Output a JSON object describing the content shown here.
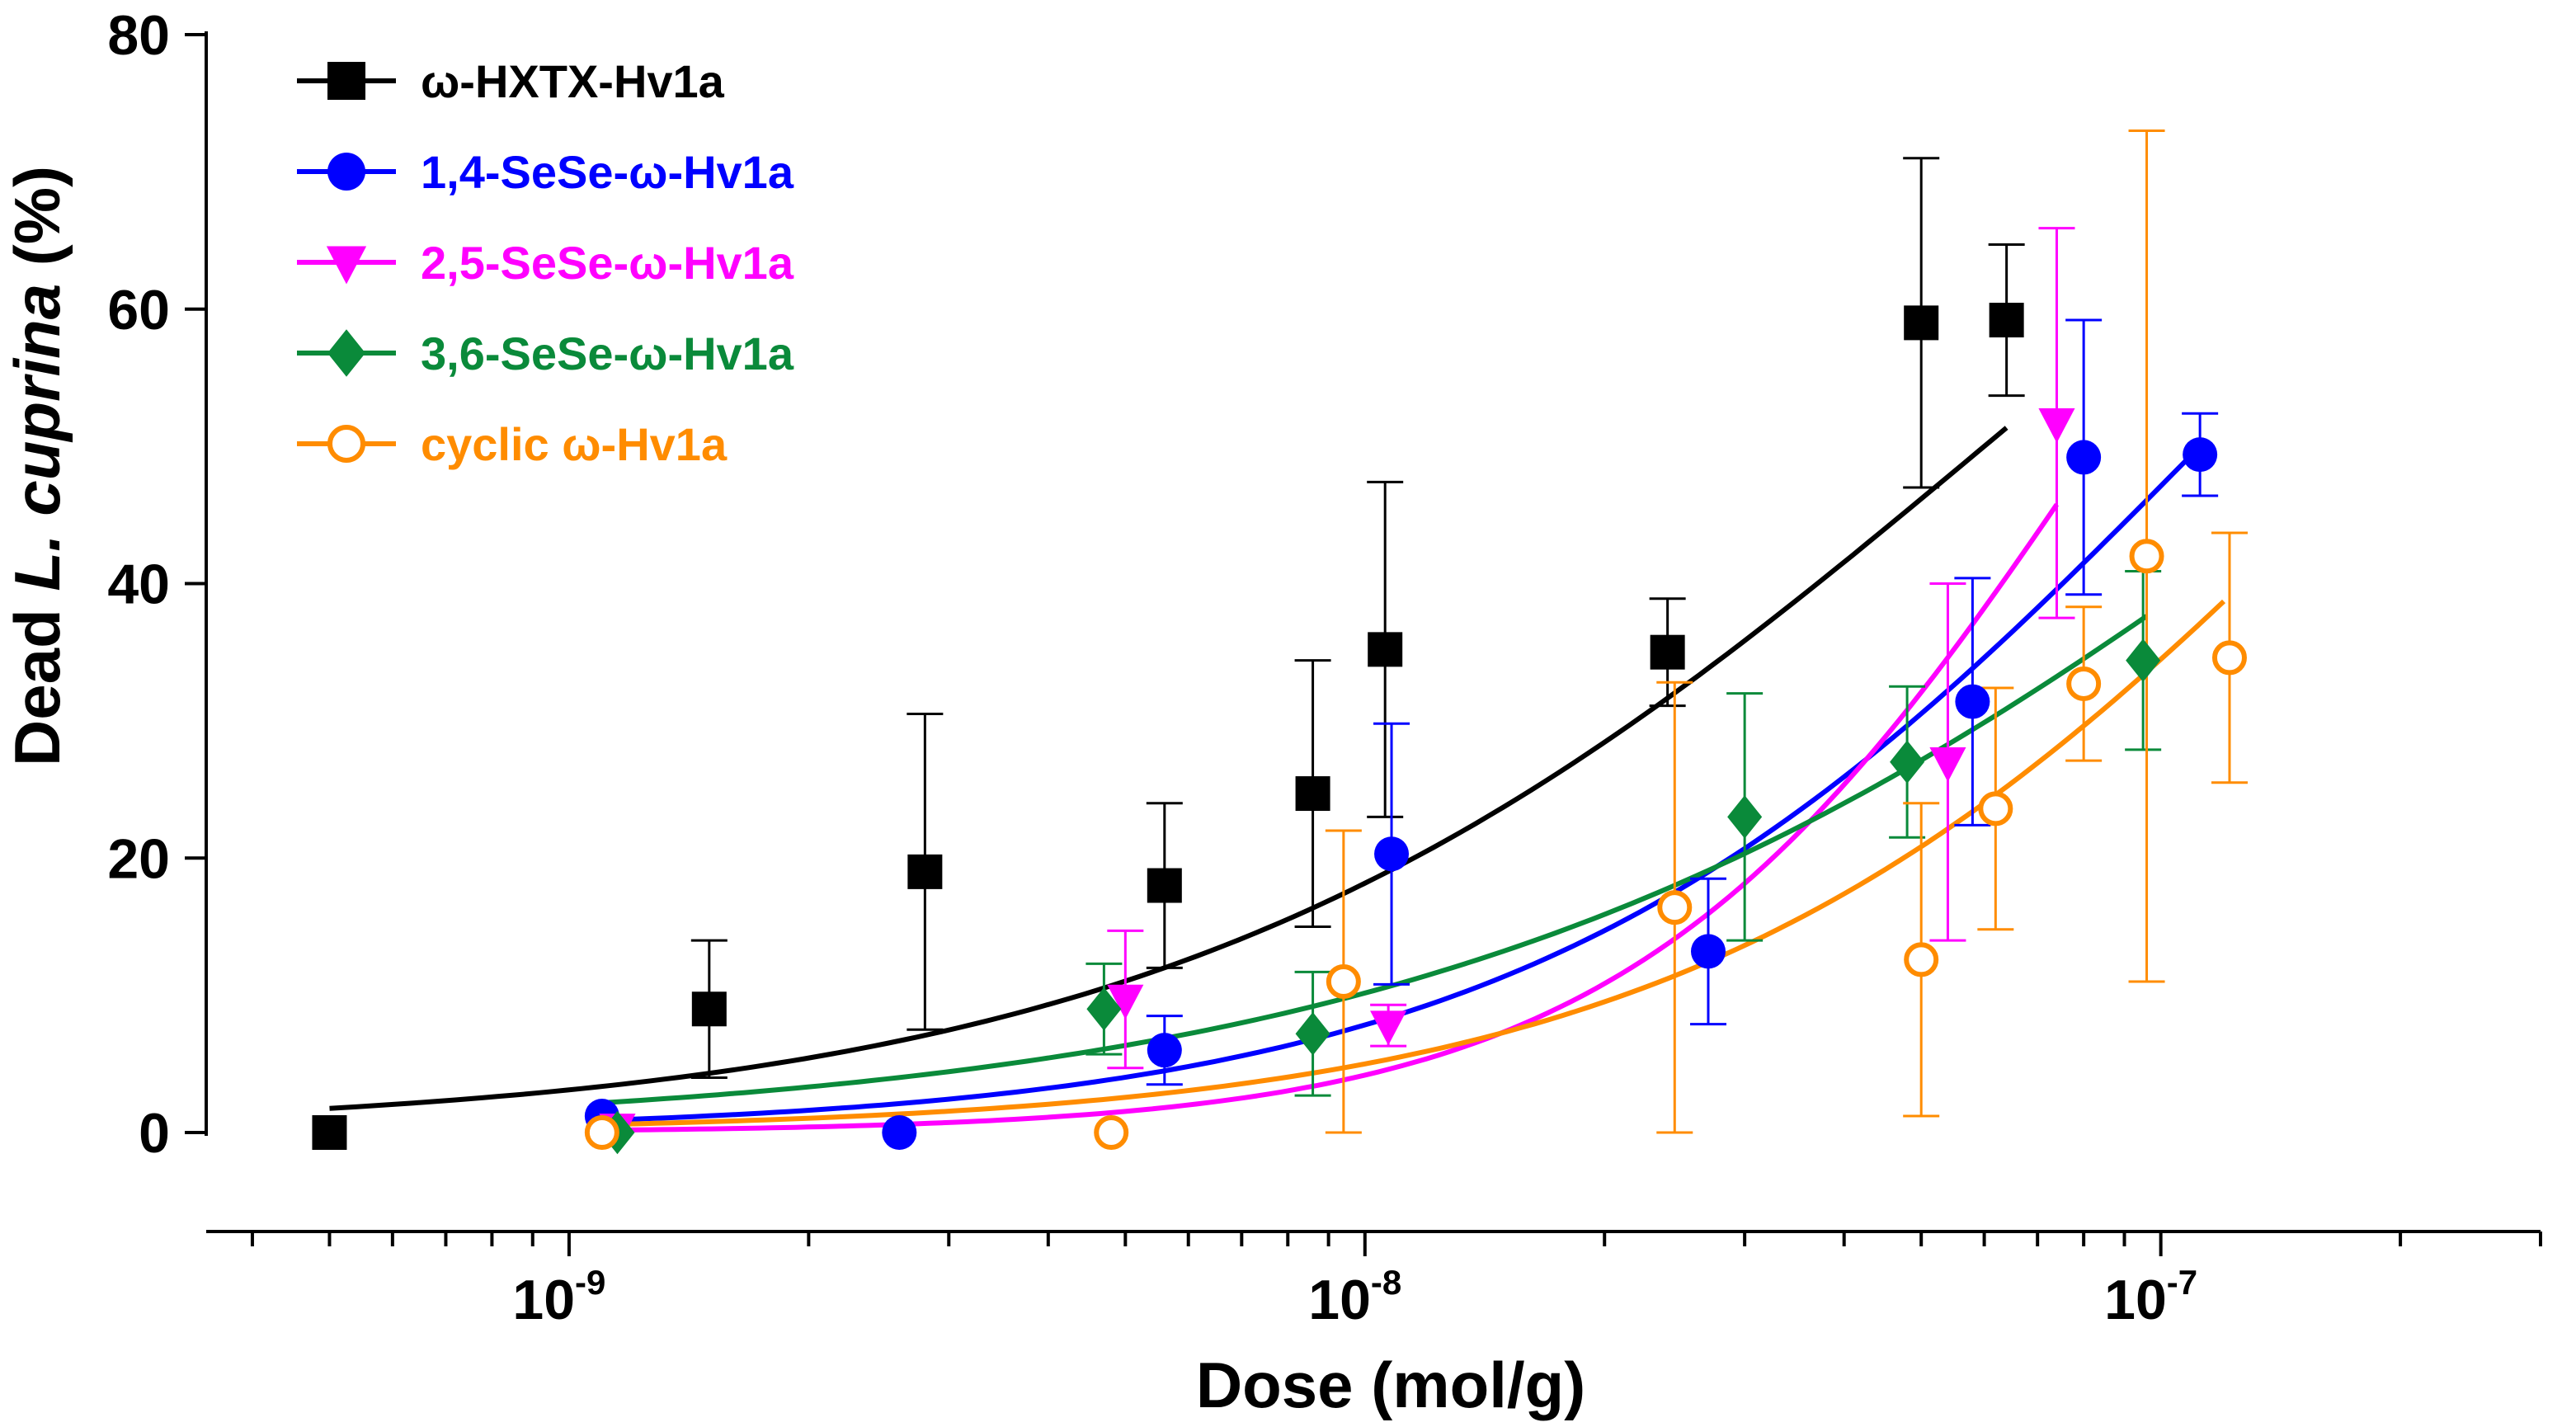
{
  "chart_data": {
    "type": "scatter",
    "title": "",
    "xlabel": "Dose (mol/g)",
    "ylabel": {
      "prefix": "Dead ",
      "italic": "L. cuprina",
      "suffix": " (%)"
    },
    "xscale": "log",
    "xlim": [
      3.5e-10,
      3e-07
    ],
    "ylim": [
      0,
      80
    ],
    "y_ticks": [
      0,
      20,
      40,
      60,
      80
    ],
    "x_ticks": [
      {
        "value": 1e-09,
        "base": "10",
        "exp": "-9"
      },
      {
        "value": 1e-08,
        "base": "10",
        "exp": "-8"
      },
      {
        "value": 1e-07,
        "base": "10",
        "exp": "-7"
      }
    ],
    "grid": false,
    "legend_position": "top-left",
    "series": [
      {
        "name": "ω-HXTX-Hv1a",
        "color": "#000000",
        "marker": "square",
        "curve": {
          "x0": 5e-10,
          "x1": 6.4e-08,
          "ec50": 6e-08,
          "hill": 0.84,
          "top": 100
        },
        "points": [
          {
            "x": 5e-10,
            "y": 0,
            "err": 0
          },
          {
            "x": 1.5e-09,
            "y": 9,
            "err": 5
          },
          {
            "x": 2.8e-09,
            "y": 19,
            "err": 11.5
          },
          {
            "x": 5.6e-09,
            "y": 18,
            "err": 6
          },
          {
            "x": 8.6e-09,
            "y": 24.7,
            "err": 9.7
          },
          {
            "x": 1.06e-08,
            "y": 35.2,
            "err": 12.2
          },
          {
            "x": 2.4e-08,
            "y": 35,
            "err": 3.9
          },
          {
            "x": 5e-08,
            "y": 59,
            "err": 12
          },
          {
            "x": 6.4e-08,
            "y": 59.2,
            "err": 5.5
          }
        ]
      },
      {
        "name": "1,4-SeSe-ω-Hv1a",
        "color": "#0000ff",
        "marker": "circle",
        "curve": {
          "x0": 1.1e-09,
          "x1": 1.12e-07,
          "ec50": 1.12e-07,
          "hill": 1.02,
          "top": 100
        },
        "points": [
          {
            "x": 1.1e-09,
            "y": 1.2,
            "err": 0
          },
          {
            "x": 2.6e-09,
            "y": 0,
            "err": 0
          },
          {
            "x": 5.6e-09,
            "y": 6,
            "err": 2.5
          },
          {
            "x": 1.08e-08,
            "y": 20.3,
            "err": 9.5
          },
          {
            "x": 2.7e-08,
            "y": 13.2,
            "err": 5.3
          },
          {
            "x": 5.8e-08,
            "y": 31.4,
            "err": 9
          },
          {
            "x": 8e-08,
            "y": 49.2,
            "err": 10
          },
          {
            "x": 1.12e-07,
            "y": 49.4,
            "err": 3
          }
        ]
      },
      {
        "name": "2,5-SeSe-ω-Hv1a",
        "color": "#ff00ff",
        "marker": "triangle-down",
        "curve": {
          "x0": 1.1e-09,
          "x1": 7.4e-08,
          "ec50": 8.3e-08,
          "hill": 1.48,
          "top": 100
        },
        "points": [
          {
            "x": 1.15e-09,
            "y": 0.3,
            "err": 0
          },
          {
            "x": 5e-09,
            "y": 9.7,
            "err": 5
          },
          {
            "x": 1.07e-08,
            "y": 7.8,
            "err": 1.5
          },
          {
            "x": 5.4e-08,
            "y": 27,
            "err": 13
          },
          {
            "x": 7.4e-08,
            "y": 51.7,
            "err": 14.2
          }
        ]
      },
      {
        "name": "3,6-SeSe-ω-Hv1a",
        "color": "#0a8a3a",
        "marker": "diamond",
        "curve": {
          "x0": 1.1e-09,
          "x1": 9.6e-08,
          "ec50": 1.9e-07,
          "hill": 0.74,
          "top": 100
        },
        "points": [
          {
            "x": 1.15e-09,
            "y": 0,
            "err": 0
          },
          {
            "x": 4.7e-09,
            "y": 9,
            "err": 3.3
          },
          {
            "x": 8.6e-09,
            "y": 7.2,
            "err": 4.5
          },
          {
            "x": 3e-08,
            "y": 23,
            "err": 9
          },
          {
            "x": 4.8e-08,
            "y": 27,
            "err": 5.5
          },
          {
            "x": 9.5e-08,
            "y": 34.4,
            "err": 6.5
          }
        ]
      },
      {
        "name": "cyclic ω-Hv1a",
        "color": "#ff8c00",
        "marker": "open-circle",
        "curve": {
          "x0": 1.1e-09,
          "x1": 1.2e-07,
          "ec50": 1.9e-07,
          "hill": 1.0,
          "top": 100
        },
        "points": [
          {
            "x": 1.1e-09,
            "y": 0,
            "err": 0
          },
          {
            "x": 4.8e-09,
            "y": 0,
            "err": 0
          },
          {
            "x": 9.4e-09,
            "y": 11,
            "err": 11
          },
          {
            "x": 2.45e-08,
            "y": 16.4,
            "err": 16.4
          },
          {
            "x": 5e-08,
            "y": 12.6,
            "err": 11.4
          },
          {
            "x": 6.2e-08,
            "y": 23.6,
            "err": 8.8
          },
          {
            "x": 8e-08,
            "y": 32.7,
            "err": 5.6
          },
          {
            "x": 9.6e-08,
            "y": 42,
            "err": 31
          },
          {
            "x": 1.22e-07,
            "y": 34.6,
            "err": 9.1
          }
        ]
      }
    ]
  }
}
